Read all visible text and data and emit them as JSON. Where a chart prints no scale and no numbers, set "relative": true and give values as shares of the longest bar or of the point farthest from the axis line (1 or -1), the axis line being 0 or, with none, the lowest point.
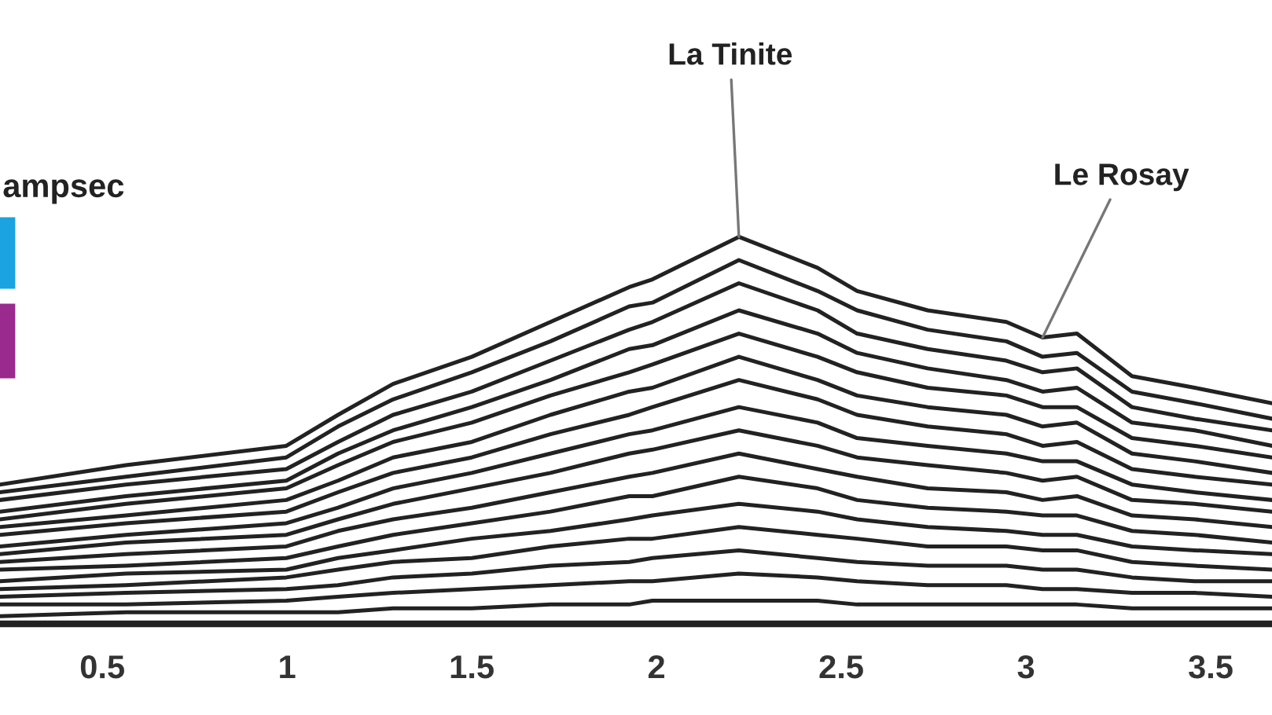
{
  "chart_data": {
    "type": "line",
    "relative": true,
    "grid": false,
    "x": [
      0.223,
      0.564,
      0.998,
      1.138,
      1.287,
      1.5,
      1.713,
      1.926,
      1.989,
      2.223,
      2.436,
      2.543,
      2.734,
      2.947,
      3.045,
      3.138,
      3.287,
      3.457,
      3.666
    ],
    "xlim": [
      0.223,
      3.666
    ],
    "xticks": [
      0.5,
      1,
      1.5,
      2,
      2.5,
      3,
      3.5
    ],
    "series": [
      {
        "color": "#222222",
        "values": [
          0.36,
          0.41,
          0.46,
          0.54,
          0.62,
          0.69,
          0.78,
          0.87,
          0.89,
          1.0,
          0.92,
          0.86,
          0.81,
          0.78,
          0.74,
          0.75,
          0.64,
          0.61,
          0.57
        ]
      },
      {
        "color": "#222222",
        "values": [
          0.34,
          0.38,
          0.43,
          0.51,
          0.58,
          0.65,
          0.73,
          0.82,
          0.83,
          0.94,
          0.86,
          0.81,
          0.76,
          0.73,
          0.69,
          0.7,
          0.6,
          0.57,
          0.53
        ]
      },
      {
        "color": "#222222",
        "values": [
          0.32,
          0.36,
          0.4,
          0.47,
          0.54,
          0.6,
          0.68,
          0.76,
          0.78,
          0.88,
          0.81,
          0.75,
          0.71,
          0.68,
          0.65,
          0.66,
          0.56,
          0.53,
          0.5
        ]
      },
      {
        "color": "#222222",
        "values": [
          0.29,
          0.33,
          0.37,
          0.44,
          0.5,
          0.56,
          0.63,
          0.71,
          0.72,
          0.81,
          0.75,
          0.7,
          0.66,
          0.63,
          0.6,
          0.61,
          0.52,
          0.5,
          0.46
        ]
      },
      {
        "color": "#222222",
        "values": [
          0.27,
          0.31,
          0.35,
          0.41,
          0.47,
          0.52,
          0.59,
          0.65,
          0.67,
          0.75,
          0.69,
          0.65,
          0.61,
          0.59,
          0.56,
          0.56,
          0.48,
          0.46,
          0.43
        ]
      },
      {
        "color": "#222222",
        "values": [
          0.25,
          0.28,
          0.32,
          0.37,
          0.43,
          0.47,
          0.54,
          0.6,
          0.61,
          0.69,
          0.63,
          0.59,
          0.56,
          0.54,
          0.51,
          0.52,
          0.44,
          0.42,
          0.39
        ]
      },
      {
        "color": "#222222",
        "values": [
          0.23,
          0.26,
          0.29,
          0.34,
          0.39,
          0.43,
          0.49,
          0.54,
          0.56,
          0.63,
          0.58,
          0.54,
          0.51,
          0.49,
          0.46,
          0.47,
          0.4,
          0.38,
          0.36
        ]
      },
      {
        "color": "#222222",
        "values": [
          0.2,
          0.23,
          0.26,
          0.3,
          0.35,
          0.39,
          0.44,
          0.49,
          0.5,
          0.56,
          0.52,
          0.48,
          0.46,
          0.44,
          0.42,
          0.42,
          0.36,
          0.34,
          0.32
        ]
      },
      {
        "color": "#222222",
        "values": [
          0.18,
          0.21,
          0.23,
          0.27,
          0.31,
          0.35,
          0.39,
          0.44,
          0.45,
          0.5,
          0.46,
          0.43,
          0.41,
          0.39,
          0.37,
          0.38,
          0.32,
          0.31,
          0.29
        ]
      },
      {
        "color": "#222222",
        "values": [
          0.16,
          0.18,
          0.2,
          0.24,
          0.27,
          0.3,
          0.34,
          0.38,
          0.39,
          0.44,
          0.4,
          0.38,
          0.35,
          0.34,
          0.32,
          0.33,
          0.28,
          0.27,
          0.25
        ]
      },
      {
        "color": "#222222",
        "values": [
          0.14,
          0.15,
          0.17,
          0.2,
          0.23,
          0.26,
          0.29,
          0.33,
          0.33,
          0.38,
          0.35,
          0.32,
          0.3,
          0.29,
          0.28,
          0.28,
          0.24,
          0.23,
          0.21
        ]
      },
      {
        "color": "#222222",
        "values": [
          0.11,
          0.13,
          0.14,
          0.17,
          0.19,
          0.22,
          0.24,
          0.27,
          0.28,
          0.31,
          0.29,
          0.27,
          0.25,
          0.24,
          0.23,
          0.23,
          0.2,
          0.19,
          0.18
        ]
      },
      {
        "color": "#222222",
        "values": [
          0.09,
          0.1,
          0.12,
          0.14,
          0.16,
          0.17,
          0.2,
          0.22,
          0.22,
          0.25,
          0.23,
          0.22,
          0.2,
          0.2,
          0.19,
          0.19,
          0.16,
          0.15,
          0.14
        ]
      },
      {
        "color": "#222222",
        "values": [
          0.07,
          0.08,
          0.09,
          0.1,
          0.12,
          0.13,
          0.15,
          0.16,
          0.17,
          0.19,
          0.17,
          0.16,
          0.15,
          0.15,
          0.14,
          0.14,
          0.12,
          0.11,
          0.11
        ]
      },
      {
        "color": "#222222",
        "values": [
          0.05,
          0.05,
          0.06,
          0.07,
          0.08,
          0.09,
          0.1,
          0.11,
          0.11,
          0.13,
          0.12,
          0.11,
          0.1,
          0.1,
          0.09,
          0.09,
          0.08,
          0.08,
          0.07
        ]
      },
      {
        "color": "#222222",
        "values": [
          0.02,
          0.03,
          0.03,
          0.03,
          0.04,
          0.04,
          0.05,
          0.05,
          0.06,
          0.06,
          0.06,
          0.05,
          0.05,
          0.05,
          0.05,
          0.05,
          0.04,
          0.04,
          0.04
        ]
      }
    ],
    "annotations": [
      "ampsec",
      {
        "text": "La Tinite",
        "x": 2.223,
        "y": 1.0
      },
      {
        "text": "Le Rosay",
        "x": 3.045,
        "y": 0.74
      }
    ]
  }
}
